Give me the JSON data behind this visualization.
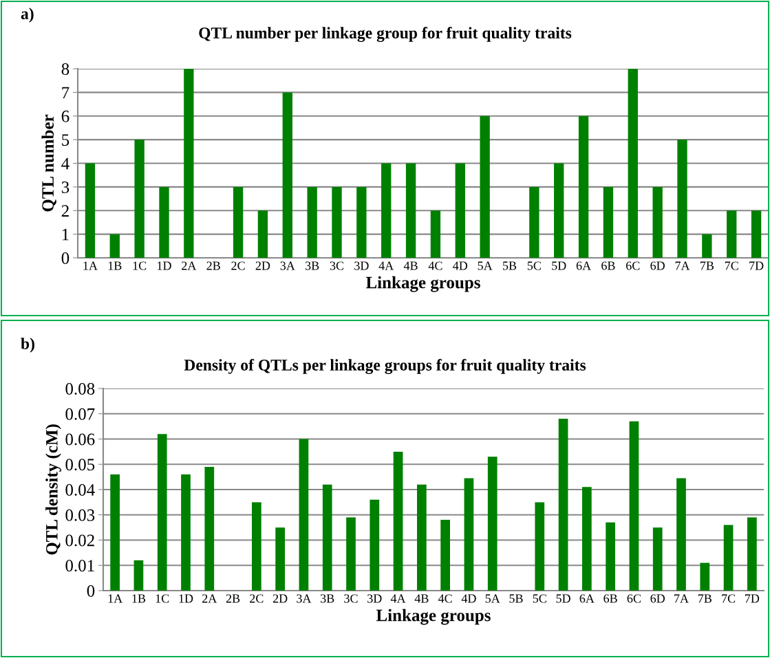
{
  "chart_data": [
    {
      "type": "bar",
      "title": "QTL number per linkage group for fruit quality traits",
      "xlabel": "Linkage groups",
      "ylabel": "QTL number",
      "annotations": [
        "a)"
      ],
      "categories": [
        "1A",
        "1B",
        "1C",
        "1D",
        "2A",
        "2B",
        "2C",
        "2D",
        "3A",
        "3B",
        "3C",
        "3D",
        "4A",
        "4B",
        "4C",
        "4D",
        "5A",
        "5B",
        "5C",
        "5D",
        "6A",
        "6B",
        "6C",
        "6D",
        "7A",
        "7B",
        "7C",
        "7D"
      ],
      "values": [
        4,
        1,
        5,
        3,
        8,
        0,
        3,
        2,
        7,
        3,
        3,
        3,
        4,
        4,
        2,
        4,
        6,
        0,
        3,
        4,
        6,
        3,
        8,
        3,
        5,
        1,
        2,
        2
      ],
      "color": "#008000",
      "ylim": [
        0,
        8
      ],
      "yticks": [
        0,
        1,
        2,
        3,
        4,
        5,
        6,
        7,
        8
      ],
      "grid": "y",
      "legend": false
    },
    {
      "type": "bar",
      "title": "Density of QTLs per linkage groups for fruit quality traits",
      "xlabel": "Linkage groups",
      "ylabel": "QTL density (cM)",
      "annotations": [
        "b)"
      ],
      "categories": [
        "1A",
        "1B",
        "1C",
        "1D",
        "2A",
        "2B",
        "2C",
        "2D",
        "3A",
        "3B",
        "3C",
        "3D",
        "4A",
        "4B",
        "4C",
        "4D",
        "5A",
        "5B",
        "5C",
        "5D",
        "6A",
        "6B",
        "6C",
        "6D",
        "7A",
        "7B",
        "7C",
        "7D"
      ],
      "values": [
        0.046,
        0.012,
        0.062,
        0.046,
        0.049,
        0,
        0.035,
        0.025,
        0.06,
        0.042,
        0.029,
        0.036,
        0.055,
        0.042,
        0.028,
        0.0445,
        0.053,
        0,
        0.035,
        0.068,
        0.041,
        0.027,
        0.067,
        0.025,
        0.0445,
        0.011,
        0.026,
        0.029
      ],
      "color": "#008000",
      "ylim": [
        0,
        0.08
      ],
      "yticks": [
        {
          "value": 0,
          "label": "0"
        },
        0.01,
        0.02,
        0.03,
        0.04,
        0.05,
        0.06,
        0.07,
        0.08
      ],
      "grid": "y",
      "legend": false
    }
  ]
}
